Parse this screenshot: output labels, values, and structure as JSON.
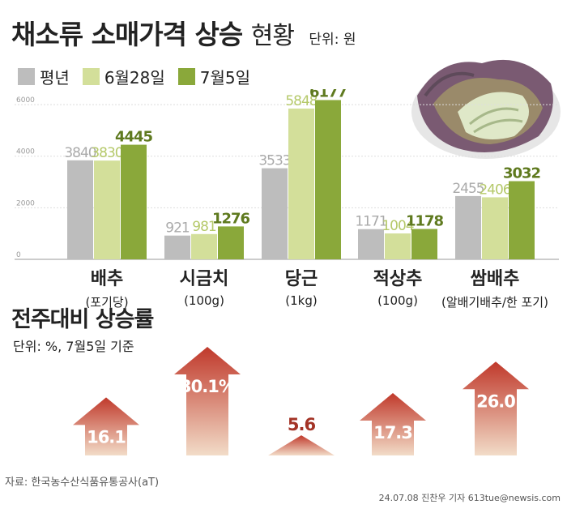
{
  "header": {
    "title": "채소류 소매가격 상승",
    "title_sub": "현황",
    "unit": "단위: 원"
  },
  "colors": {
    "avg": "#bdbdbd",
    "jun28": "#d3df9a",
    "jul5": "#8aa83a",
    "avg_label": "#aaaaaa",
    "jun28_label": "#b5c96a",
    "jul5_label": "#5f7a1f",
    "arrow_top": "#c0392b",
    "arrow_bottom": "#f2dcc8"
  },
  "chart_data": [
    {
      "type": "bar",
      "title": "채소류 소매가격 상승 현황",
      "unit": "원",
      "categories": [
        "배추",
        "시금치",
        "당근",
        "적상추",
        "쌈배추"
      ],
      "category_units": [
        "(포기당)",
        "(100g)",
        "(1kg)",
        "(100g)",
        "(알배기배추/한 포기)"
      ],
      "series": [
        {
          "name": "평년",
          "values": [
            3840,
            921,
            3533,
            1171,
            2455
          ]
        },
        {
          "name": "6월28일",
          "values": [
            3830,
            981,
            5848,
            1004,
            2406
          ]
        },
        {
          "name": "7월5일",
          "values": [
            4445,
            1276,
            6177,
            1178,
            3032
          ]
        }
      ],
      "yticks": [
        0,
        2000,
        4000,
        6000
      ],
      "ylim": [
        0,
        6600
      ],
      "grid": true,
      "legend": "top-left"
    },
    {
      "type": "bar",
      "title": "전주대비 상승률",
      "unit": "%",
      "note": "단위: %, 7월5일 기준",
      "categories": [
        "배추",
        "시금치",
        "당근",
        "적상추",
        "쌈배추"
      ],
      "values": [
        16.1,
        30.1,
        5.6,
        17.3,
        26.0
      ],
      "value_labels": [
        "16.1",
        "30.1%",
        "5.6",
        "17.3",
        "26.0"
      ]
    }
  ],
  "section2": {
    "title": "전주대비 상승률",
    "unit": "단위: %, 7월5일 기준"
  },
  "footer": {
    "source": "자료: 한국농수산식품유통공사(aT)",
    "credit": "24.07.08 진찬우 기자 613tue@newsis.com"
  }
}
